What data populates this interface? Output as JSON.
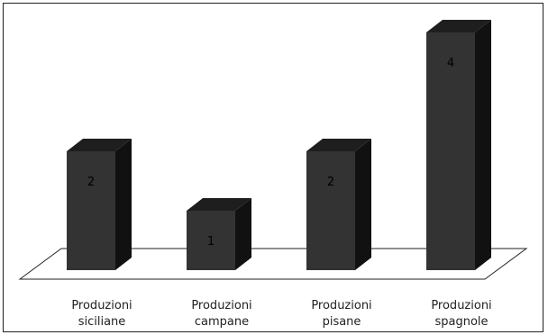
{
  "chart_data": {
    "type": "bar",
    "categories": [
      [
        "Produzioni",
        "siciliane"
      ],
      [
        "Produzioni",
        "campane"
      ],
      [
        "Produzioni",
        "pisane"
      ],
      [
        "Produzioni",
        "spagnole"
      ]
    ],
    "values": [
      2,
      1,
      2,
      4
    ],
    "value_labels": [
      "2",
      "1",
      "2",
      "4"
    ],
    "ylim": [
      0,
      4
    ],
    "grid": false,
    "legend": "none",
    "style": "3d-column",
    "colors": {
      "bar_front": "#333333",
      "bar_side": "#111111",
      "bar_top": "#1e1e1e",
      "floor_stroke": "#222222",
      "frame": "#222222"
    }
  }
}
